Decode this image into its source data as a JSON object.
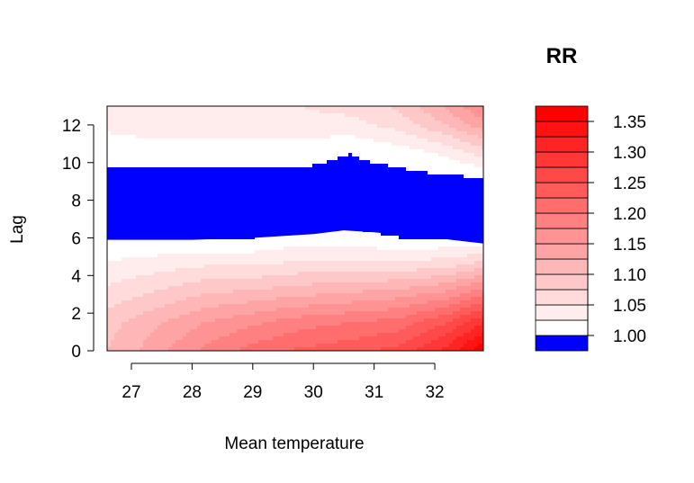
{
  "chart_data": {
    "type": "heatmap",
    "title": "",
    "xlabel": "Mean temperature",
    "ylabel": "Lag",
    "x_ticks": [
      27,
      28,
      29,
      30,
      31,
      32
    ],
    "y_ticks": [
      0,
      2,
      4,
      6,
      8,
      10,
      12
    ],
    "xlim": [
      26.6,
      32.8
    ],
    "ylim": [
      0,
      13
    ],
    "grid": false,
    "legend": {
      "title": "RR",
      "position": "right",
      "levels": [
        0.975,
        1.0,
        1.025,
        1.05,
        1.075,
        1.1,
        1.125,
        1.15,
        1.175,
        1.2,
        1.225,
        1.25,
        1.275,
        1.3,
        1.325,
        1.35,
        1.375
      ],
      "tick_labels": [
        "1.00",
        "1.05",
        "1.10",
        "1.15",
        "1.20",
        "1.25",
        "1.30",
        "1.35"
      ],
      "below_one_color": "#0000ff",
      "high_color": "#ff0000",
      "low_color": "#ffffff"
    },
    "band_below_one": {
      "x": [
        26.6,
        28.0,
        29.0,
        30.0,
        30.5,
        31.0,
        32.0,
        32.8
      ],
      "lower": [
        5.9,
        5.9,
        6.0,
        6.2,
        6.4,
        6.3,
        6.0,
        5.7
      ],
      "upper": [
        9.6,
        9.6,
        9.5,
        9.4,
        9.3,
        9.1,
        9.0,
        8.9
      ]
    },
    "surface": {
      "x": [
        26.6,
        27.4,
        28.2,
        29.0,
        29.8,
        30.6,
        31.4,
        32.2,
        32.8
      ],
      "lag": [
        0,
        1.5,
        3,
        4.5,
        6,
        7.5,
        9,
        10.5,
        12,
        13
      ],
      "rr": [
        [
          1.1,
          1.14,
          1.18,
          1.21,
          1.23,
          1.24,
          1.26,
          1.31,
          1.37
        ],
        [
          1.09,
          1.12,
          1.15,
          1.17,
          1.19,
          1.2,
          1.21,
          1.25,
          1.3
        ],
        [
          1.06,
          1.08,
          1.1,
          1.11,
          1.12,
          1.13,
          1.14,
          1.16,
          1.2
        ],
        [
          1.03,
          1.04,
          1.05,
          1.05,
          1.06,
          1.06,
          1.06,
          1.07,
          1.09
        ],
        [
          1.0,
          1.0,
          1.0,
          1.0,
          1.01,
          1.01,
          1.0,
          1.0,
          1.0
        ],
        [
          0.98,
          0.98,
          0.98,
          0.98,
          0.98,
          0.98,
          0.98,
          0.98,
          0.98
        ],
        [
          0.99,
          0.99,
          0.99,
          0.99,
          0.99,
          0.99,
          0.99,
          0.99,
          0.99
        ],
        [
          1.01,
          1.01,
          1.01,
          1.01,
          1.01,
          1.0,
          1.01,
          1.03,
          1.06
        ],
        [
          1.03,
          1.04,
          1.04,
          1.04,
          1.04,
          1.04,
          1.06,
          1.1,
          1.14
        ],
        [
          1.04,
          1.05,
          1.05,
          1.05,
          1.05,
          1.06,
          1.08,
          1.13,
          1.18
        ]
      ]
    }
  }
}
